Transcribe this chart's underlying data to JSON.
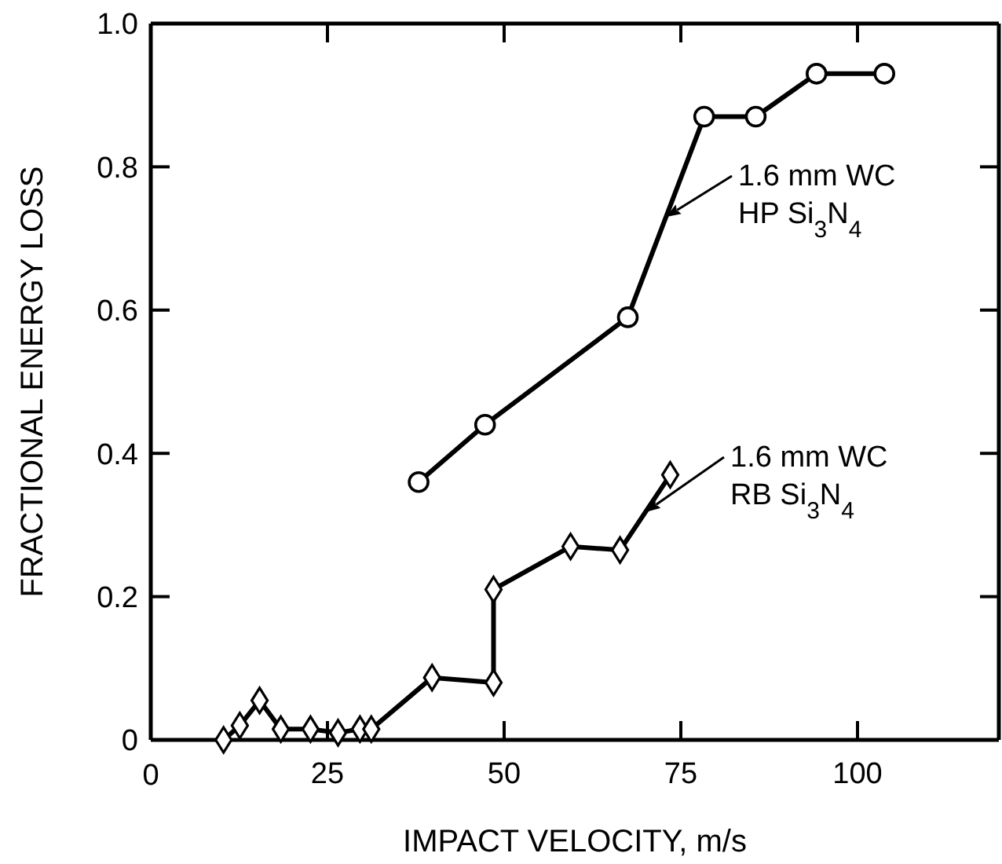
{
  "chart_data": {
    "type": "line",
    "xlabel": "IMPACT VELOCITY, m/s",
    "ylabel": "FRACTIONAL ENERGY LOSS",
    "annotations": [
      {
        "text": "1.6 mm WC HP Si$_{3}$N$_{4}$",
        "x": 72.9,
        "y": 0.73
      },
      {
        "text": "1.6 mm WC RB Si$_{3}$N$_{4}$",
        "x": 70,
        "y": 0.318
      }
    ],
    "xlim": [
      0,
      120
    ],
    "xticks": [
      0,
      25,
      50,
      75,
      100
    ],
    "ylim": [
      0,
      1
    ],
    "yticks": [
      0,
      0.2,
      0.4,
      0.6,
      0.8,
      {
        "value": 1,
        "label": "1.0"
      }
    ],
    "series": [
      {
        "color": "#000000",
        "marker": "circle",
        "x": [
          37.9,
          47.3,
          67.5,
          78.3,
          85.6,
          94.2,
          103.8
        ],
        "values": [
          0.36,
          0.44,
          0.59,
          0.87,
          0.87,
          0.93,
          0.93
        ]
      },
      {
        "color": "#000000",
        "marker": "diamond",
        "x": [
          10.3,
          12.6,
          15.4,
          18.4,
          22.6,
          26.5,
          29.6,
          31.2,
          39.8,
          48.5,
          48.5,
          59.4,
          66.4,
          73.5
        ],
        "values": [
          0,
          0.02,
          0.055,
          0.015,
          0.015,
          0.01,
          0.015,
          0.015,
          0.087,
          0.08,
          0.21,
          0.27,
          0.265,
          0.37
        ]
      }
    ]
  }
}
